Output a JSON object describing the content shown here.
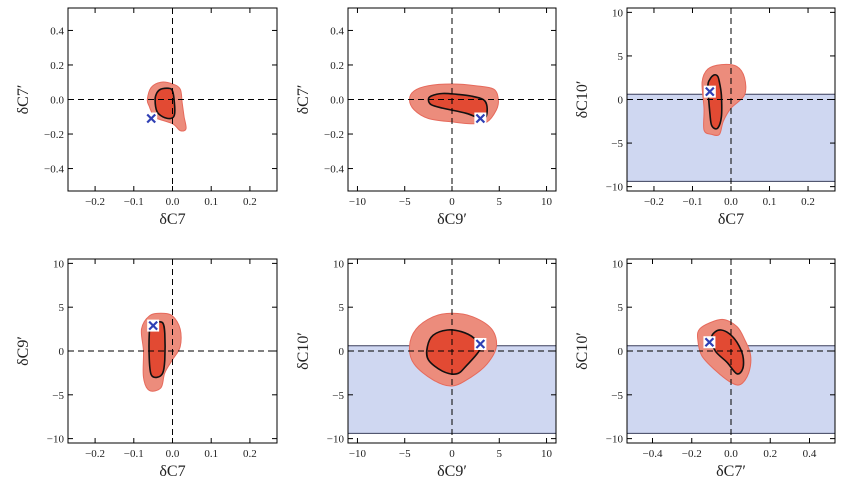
{
  "chart_data": [
    {
      "type": "contour",
      "xlabel": "δC7",
      "ylabel": "δC7′",
      "xlim": [
        -0.27,
        0.27
      ],
      "ylim": [
        -0.53,
        0.53
      ],
      "xticks": [
        -0.2,
        -0.1,
        0.0,
        0.1,
        0.2
      ],
      "xtick_labels": [
        "−0.2",
        "−0.1",
        "0.0",
        "0.1",
        "0.2"
      ],
      "yticks": [
        -0.4,
        -0.2,
        0.0,
        0.2,
        0.4
      ],
      "ytick_labels": [
        "−0.4",
        "−0.2",
        "0.0",
        "0.2",
        "0.4"
      ],
      "excluded_band": null,
      "regions": [
        {
          "name": "outer-region",
          "points": [
            [
              -0.06,
              -0.04
            ],
            [
              -0.05,
              -0.09
            ],
            [
              -0.04,
              -0.11
            ],
            [
              0.0,
              -0.14
            ],
            [
              0.02,
              -0.18
            ],
            [
              0.035,
              -0.17
            ],
            [
              0.03,
              -0.1
            ],
            [
              0.025,
              -0.02
            ],
            [
              0.02,
              0.06
            ],
            [
              0.0,
              0.09
            ],
            [
              -0.03,
              0.1
            ],
            [
              -0.055,
              0.07
            ],
            [
              -0.065,
              0.0
            ]
          ]
        },
        {
          "name": "inner-region",
          "points": [
            [
              -0.045,
              0.0
            ],
            [
              -0.04,
              -0.07
            ],
            [
              -0.025,
              -0.1
            ],
            [
              -0.005,
              -0.11
            ],
            [
              0.005,
              -0.09
            ],
            [
              0.005,
              -0.02
            ],
            [
              0.0,
              0.05
            ],
            [
              -0.01,
              0.065
            ],
            [
              -0.03,
              0.06
            ],
            [
              -0.04,
              0.04
            ]
          ]
        }
      ],
      "best_fit": [
        -0.055,
        -0.11
      ]
    },
    {
      "type": "contour",
      "xlabel": "δC9′",
      "ylabel": "δC7′",
      "xlim": [
        -11,
        11
      ],
      "ylim": [
        -0.53,
        0.53
      ],
      "xticks": [
        -10,
        -5,
        0,
        5,
        10
      ],
      "xtick_labels": [
        "−10",
        "−5",
        "0",
        "5",
        "10"
      ],
      "yticks": [
        -0.4,
        -0.2,
        0.0,
        0.2,
        0.4
      ],
      "ytick_labels": [
        "−0.4",
        "−0.2",
        "0.0",
        "0.2",
        "0.4"
      ],
      "excluded_band": null,
      "regions": [
        {
          "name": "outer-region",
          "points": [
            [
              -4.5,
              0.0
            ],
            [
              -4.0,
              -0.06
            ],
            [
              -2.5,
              -0.11
            ],
            [
              0.0,
              -0.13
            ],
            [
              2.0,
              -0.14
            ],
            [
              3.7,
              -0.13
            ],
            [
              4.7,
              -0.06
            ],
            [
              4.9,
              0.0
            ],
            [
              4.4,
              0.06
            ],
            [
              2.5,
              0.08
            ],
            [
              0.0,
              0.09
            ],
            [
              -2.5,
              0.08
            ],
            [
              -4.0,
              0.05
            ]
          ]
        },
        {
          "name": "inner-region",
          "points": [
            [
              -2.5,
              0.0
            ],
            [
              -2.2,
              -0.03
            ],
            [
              -1.0,
              -0.05
            ],
            [
              1.5,
              -0.08
            ],
            [
              3.0,
              -0.11
            ],
            [
              3.6,
              -0.1
            ],
            [
              3.7,
              -0.04
            ],
            [
              3.3,
              0.0
            ],
            [
              2.0,
              0.02
            ],
            [
              0.5,
              0.03
            ],
            [
              -1.0,
              0.035
            ],
            [
              -2.2,
              0.02
            ]
          ]
        }
      ],
      "best_fit": [
        3.0,
        -0.11
      ]
    },
    {
      "type": "contour",
      "xlabel": "δC7",
      "ylabel": "δC10′",
      "xlim": [
        -0.27,
        0.27
      ],
      "ylim": [
        -10.5,
        10.5
      ],
      "xticks": [
        -0.2,
        -0.1,
        0.0,
        0.1,
        0.2
      ],
      "xtick_labels": [
        "−0.2",
        "−0.1",
        "0.0",
        "0.1",
        "0.2"
      ],
      "yticks": [
        -10,
        -5,
        0,
        5,
        10
      ],
      "ytick_labels": [
        "−10",
        "−5",
        "0",
        "5",
        "10"
      ],
      "excluded_band": [
        -9.4,
        0.6
      ],
      "regions": [
        {
          "name": "outer-region",
          "points": [
            [
              -0.075,
              2.0
            ],
            [
              -0.07,
              -1.0
            ],
            [
              -0.07,
              -3.5
            ],
            [
              -0.05,
              -4.0
            ],
            [
              -0.03,
              -4.0
            ],
            [
              -0.02,
              -2.5
            ],
            [
              0.0,
              -1.0
            ],
            [
              0.035,
              0.5
            ],
            [
              0.035,
              2.5
            ],
            [
              0.015,
              3.8
            ],
            [
              -0.025,
              4.0
            ],
            [
              -0.06,
              3.5
            ]
          ]
        },
        {
          "name": "inner-region",
          "points": [
            [
              -0.06,
              1.5
            ],
            [
              -0.055,
              -1.5
            ],
            [
              -0.05,
              -3.0
            ],
            [
              -0.035,
              -3.3
            ],
            [
              -0.025,
              -2.0
            ],
            [
              -0.025,
              0.5
            ],
            [
              -0.03,
              2.0
            ],
            [
              -0.035,
              2.7
            ],
            [
              -0.045,
              2.8
            ],
            [
              -0.055,
              2.3
            ]
          ]
        }
      ],
      "best_fit": [
        -0.055,
        0.9
      ]
    },
    {
      "type": "contour",
      "xlabel": "δC7",
      "ylabel": "δC9′",
      "xlim": [
        -0.27,
        0.27
      ],
      "ylim": [
        -10.5,
        10.5
      ],
      "xticks": [
        -0.2,
        -0.1,
        0.0,
        0.1,
        0.2
      ],
      "xtick_labels": [
        "−0.2",
        "−0.1",
        "0.0",
        "0.1",
        "0.2"
      ],
      "yticks": [
        -10,
        -5,
        0,
        5,
        10
      ],
      "ytick_labels": [
        "−10",
        "−5",
        "0",
        "5",
        "10"
      ],
      "excluded_band": null,
      "regions": [
        {
          "name": "outer-region",
          "points": [
            [
              -0.08,
              2.5
            ],
            [
              -0.075,
              0.0
            ],
            [
              -0.075,
              -3.0
            ],
            [
              -0.06,
              -4.5
            ],
            [
              -0.03,
              -4.2
            ],
            [
              -0.02,
              -2.5
            ],
            [
              0.0,
              -1.0
            ],
            [
              0.02,
              0.5
            ],
            [
              0.02,
              2.5
            ],
            [
              0.0,
              4.0
            ],
            [
              -0.03,
              4.3
            ],
            [
              -0.06,
              4.0
            ]
          ]
        },
        {
          "name": "inner-region",
          "points": [
            [
              -0.06,
              2.0
            ],
            [
              -0.06,
              -1.0
            ],
            [
              -0.055,
              -2.7
            ],
            [
              -0.04,
              -3.0
            ],
            [
              -0.025,
              -2.5
            ],
            [
              -0.02,
              -1.0
            ],
            [
              -0.02,
              2.0
            ],
            [
              -0.025,
              3.2
            ],
            [
              -0.04,
              3.3
            ],
            [
              -0.055,
              3.0
            ]
          ]
        }
      ],
      "best_fit": [
        -0.05,
        2.9
      ]
    },
    {
      "type": "contour",
      "xlabel": "δC9′",
      "ylabel": "δC10′",
      "xlim": [
        -11,
        11
      ],
      "ylim": [
        -10.5,
        10.5
      ],
      "xticks": [
        -10,
        -5,
        0,
        5,
        10
      ],
      "xtick_labels": [
        "−10",
        "−5",
        "0",
        "5",
        "10"
      ],
      "yticks": [
        -10,
        -5,
        0,
        5,
        10
      ],
      "ytick_labels": [
        "−10",
        "−5",
        "0",
        "5",
        "10"
      ],
      "excluded_band": [
        -9.4,
        0.6
      ],
      "regions": [
        {
          "name": "outer-region",
          "points": [
            [
              -4.5,
              0.5
            ],
            [
              -4.0,
              -1.5
            ],
            [
              -2.0,
              -3.3
            ],
            [
              0.0,
              -4.0
            ],
            [
              2.0,
              -3.0
            ],
            [
              3.7,
              -1.5
            ],
            [
              4.7,
              0.5
            ],
            [
              4.2,
              2.5
            ],
            [
              2.2,
              3.9
            ],
            [
              0.0,
              4.3
            ],
            [
              -2.0,
              3.9
            ],
            [
              -3.8,
              2.5
            ]
          ]
        },
        {
          "name": "inner-region",
          "points": [
            [
              -2.6,
              0.5
            ],
            [
              -2.5,
              -1.0
            ],
            [
              -1.0,
              -2.3
            ],
            [
              0.5,
              -2.6
            ],
            [
              1.5,
              -1.7
            ],
            [
              3.0,
              0.3
            ],
            [
              2.3,
              1.5
            ],
            [
              1.0,
              2.2
            ],
            [
              -0.5,
              2.4
            ],
            [
              -2.0,
              1.8
            ]
          ]
        }
      ],
      "best_fit": [
        3.0,
        0.8
      ]
    },
    {
      "type": "contour",
      "xlabel": "δC7′",
      "ylabel": "δC10′",
      "xlim": [
        -0.53,
        0.53
      ],
      "ylim": [
        -10.5,
        10.5
      ],
      "xticks": [
        -0.4,
        -0.2,
        0.0,
        0.2,
        0.4
      ],
      "xtick_labels": [
        "−0.4",
        "−0.2",
        "0.0",
        "0.2",
        "0.4"
      ],
      "yticks": [
        -10,
        -5,
        0,
        5,
        10
      ],
      "ytick_labels": [
        "−10",
        "−5",
        "0",
        "5",
        "10"
      ],
      "excluded_band": [
        -9.4,
        0.6
      ],
      "regions": [
        {
          "name": "outer-region",
          "points": [
            [
              -0.17,
              1.5
            ],
            [
              -0.15,
              -0.5
            ],
            [
              -0.08,
              -2.2
            ],
            [
              0.0,
              -3.6
            ],
            [
              0.05,
              -3.8
            ],
            [
              0.09,
              -2.5
            ],
            [
              0.1,
              -0.5
            ],
            [
              0.07,
              1.3
            ],
            [
              0.03,
              2.8
            ],
            [
              -0.04,
              3.6
            ],
            [
              -0.11,
              3.2
            ],
            [
              -0.16,
              2.5
            ]
          ]
        },
        {
          "name": "inner-region",
          "points": [
            [
              -0.1,
              1.5
            ],
            [
              -0.08,
              0.0
            ],
            [
              -0.02,
              -1.3
            ],
            [
              0.03,
              -2.6
            ],
            [
              0.06,
              -2.0
            ],
            [
              0.06,
              -0.5
            ],
            [
              0.03,
              1.0
            ],
            [
              -0.01,
              2.0
            ],
            [
              -0.05,
              2.4
            ],
            [
              -0.08,
              2.2
            ]
          ]
        }
      ],
      "best_fit": [
        -0.11,
        1.0
      ]
    }
  ],
  "colors": {
    "outer_fill": "#ec8c7c",
    "outer_stroke": "#e66a5c",
    "inner_fill": "#e24a33",
    "inner_stroke": "#111111",
    "band_fill": "#cfd7f1",
    "band_stroke": "#3a3f5c",
    "marker": "#2f3fb4"
  }
}
